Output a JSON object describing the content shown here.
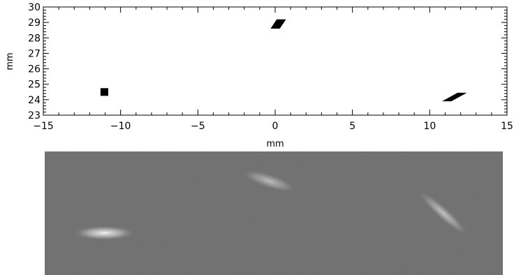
{
  "chart_data": [
    {
      "type": "scatter",
      "xlabel": "mm",
      "ylabel": "mm",
      "xlim": [
        -15,
        15
      ],
      "ylim": [
        23,
        30
      ],
      "x_ticks": [
        -15,
        -10,
        -5,
        0,
        5,
        10,
        15
      ],
      "y_ticks": [
        23,
        24,
        25,
        26,
        27,
        28,
        29,
        30
      ],
      "grid": false,
      "marker_color": "#000000",
      "shapes": [
        {
          "label": "",
          "kind": "filled-rectangle",
          "polygon": [
            [
              -11.3,
              24.25
            ],
            [
              -10.8,
              24.25
            ],
            [
              -10.8,
              24.75
            ],
            [
              -11.3,
              24.75
            ]
          ]
        },
        {
          "label": "",
          "kind": "filled-parallelogram",
          "polygon": [
            [
              -0.3,
              28.6
            ],
            [
              0.3,
              28.6
            ],
            [
              0.7,
              29.2
            ],
            [
              0.1,
              29.2
            ]
          ]
        },
        {
          "label": "",
          "kind": "filled-parallelogram",
          "polygon": [
            [
              10.8,
              23.9
            ],
            [
              11.4,
              23.9
            ],
            [
              12.4,
              24.45
            ],
            [
              11.8,
              24.45
            ]
          ]
        }
      ]
    },
    {
      "type": "heatmap",
      "description": "",
      "background_color": "#6b6b6b",
      "blobs": [
        {
          "x": 0.13,
          "y": 0.66,
          "rx": 0.065,
          "ry": 0.035,
          "rotate": 0,
          "intensity": 0.95
        },
        {
          "x": 0.49,
          "y": 0.24,
          "rx": 0.06,
          "ry": 0.035,
          "rotate": 18,
          "intensity": 0.55
        },
        {
          "x": 0.87,
          "y": 0.5,
          "rx": 0.07,
          "ry": 0.03,
          "rotate": 42,
          "intensity": 0.6
        }
      ]
    }
  ]
}
